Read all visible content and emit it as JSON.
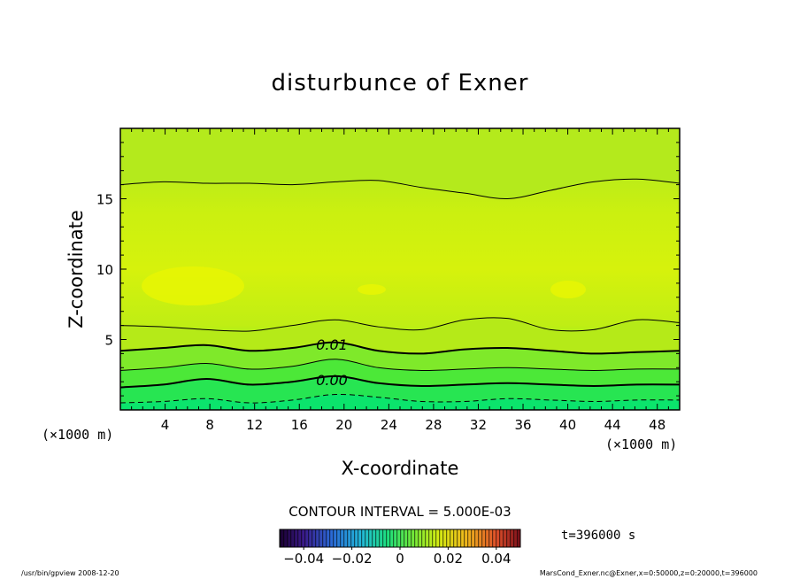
{
  "chart_data": {
    "type": "heatmap",
    "title": "disturbunce of Exner",
    "xlabel": "X-coordinate",
    "ylabel": "Z-coordinate",
    "x_unit_left": "(×1000 m)",
    "x_unit_right": "(×1000 m)",
    "xlim": [
      0,
      50
    ],
    "ylim": [
      0,
      20
    ],
    "x_ticks": [
      "4",
      "8",
      "12",
      "16",
      "20",
      "24",
      "28",
      "32",
      "36",
      "40",
      "44",
      "48"
    ],
    "x_tick_values": [
      4,
      8,
      12,
      16,
      20,
      24,
      28,
      32,
      36,
      40,
      44,
      48
    ],
    "y_ticks": [
      "5",
      "10",
      "15"
    ],
    "y_tick_values": [
      5,
      10,
      15
    ],
    "contour_lines": [
      {
        "name": "dashed-low",
        "level": -0.005,
        "style": "dashed",
        "z": [
          0.5,
          0.6,
          0.8,
          0.5,
          0.7,
          1.1,
          0.9,
          0.6,
          0.6,
          0.8,
          0.7,
          0.6,
          0.7,
          0.7
        ]
      },
      {
        "name": "zero",
        "level": 0.0,
        "style": "thick",
        "z": [
          1.6,
          1.8,
          2.2,
          1.8,
          2.0,
          2.4,
          1.9,
          1.7,
          1.8,
          1.9,
          1.8,
          1.7,
          1.8,
          1.8
        ]
      },
      {
        "name": "pos-005",
        "level": 0.005,
        "style": "thin",
        "z": [
          2.8,
          3.0,
          3.3,
          2.9,
          3.1,
          3.6,
          3.0,
          2.8,
          2.9,
          3.0,
          2.9,
          2.8,
          2.9,
          2.9
        ]
      },
      {
        "name": "one",
        "level": 0.01,
        "style": "thick",
        "z": [
          4.2,
          4.4,
          4.6,
          4.2,
          4.4,
          4.8,
          4.2,
          4.0,
          4.3,
          4.4,
          4.2,
          4.0,
          4.1,
          4.2
        ]
      },
      {
        "name": "pos-015",
        "level": 0.015,
        "style": "thin",
        "z": [
          6.0,
          5.9,
          5.7,
          5.6,
          6.0,
          6.4,
          5.9,
          5.7,
          6.4,
          6.5,
          5.7,
          5.7,
          6.4,
          6.2
        ]
      },
      {
        "name": "top",
        "level": 0.015,
        "style": "thin",
        "z": [
          16.0,
          16.2,
          16.1,
          16.1,
          16.0,
          16.2,
          16.3,
          15.8,
          15.4,
          15.0,
          15.6,
          16.2,
          16.4,
          16.1
        ]
      }
    ],
    "contour_labels": [
      {
        "text": "0.01",
        "x": 17.5,
        "z": 4.4
      },
      {
        "text": "0.00",
        "x": 17.5,
        "z": 1.9
      }
    ],
    "contour_interval": "CONTOUR INTERVAL = 5.000E-03",
    "colorbar": {
      "min": -0.05,
      "max": 0.05,
      "tick_values": [
        -0.04,
        -0.02,
        0,
        0.02,
        0.04
      ],
      "tick_labels": [
        "−0.04",
        "−0.02",
        "0",
        "0.02",
        "0.04"
      ]
    },
    "time_text": "t=396000  s"
  },
  "footer": {
    "left": "/usr/bin/gpview   2008-12-20",
    "right": "MarsCond_Exner.nc@Exner,x=0:50000,z=0:20000,t=396000"
  },
  "colors": {
    "band_low": "#00e676",
    "band_mid": "#39ec3b",
    "band_high": "#a6ec1c",
    "field": "#c8ee12",
    "field_max": "#e8f604",
    "top": "#b4ea1c"
  }
}
